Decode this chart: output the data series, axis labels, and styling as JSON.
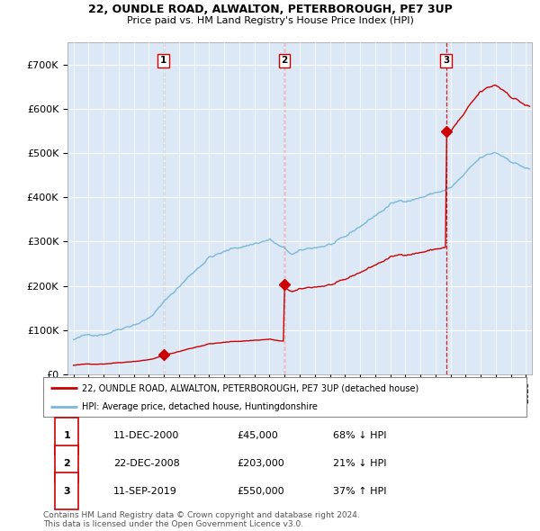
{
  "title_line1": "22, OUNDLE ROAD, ALWALTON, PETERBOROUGH, PE7 3UP",
  "title_line2": "Price paid vs. HM Land Registry's House Price Index (HPI)",
  "sale_times": [
    2000.96,
    2008.98,
    2019.71
  ],
  "sale_prices": [
    45000,
    203000,
    550000
  ],
  "sale_labels": [
    "1",
    "2",
    "3"
  ],
  "vline_colors": [
    "#888888",
    "#cc0000",
    "#cc0000"
  ],
  "vline_styles": [
    "--",
    "--",
    "--"
  ],
  "legend_entry1": "22, OUNDLE ROAD, ALWALTON, PETERBOROUGH, PE7 3UP (detached house)",
  "legend_entry2": "HPI: Average price, detached house, Huntingdonshire",
  "table_rows": [
    [
      "1",
      "11-DEC-2000",
      "£45,000",
      "68% ↓ HPI"
    ],
    [
      "2",
      "22-DEC-2008",
      "£203,000",
      "21% ↓ HPI"
    ],
    [
      "3",
      "11-SEP-2019",
      "£550,000",
      "37% ↑ HPI"
    ]
  ],
  "footnote": "Contains HM Land Registry data © Crown copyright and database right 2024.\nThis data is licensed under the Open Government Licence v3.0.",
  "hpi_color": "#7ab8d9",
  "sale_color": "#cc0000",
  "ylim": [
    0,
    750000
  ],
  "yticks": [
    0,
    100000,
    200000,
    300000,
    400000,
    500000,
    600000,
    700000
  ],
  "xlim": [
    1994.6,
    2025.4
  ],
  "background_color": "#ffffff",
  "plot_bg_color": "#dce8f5"
}
